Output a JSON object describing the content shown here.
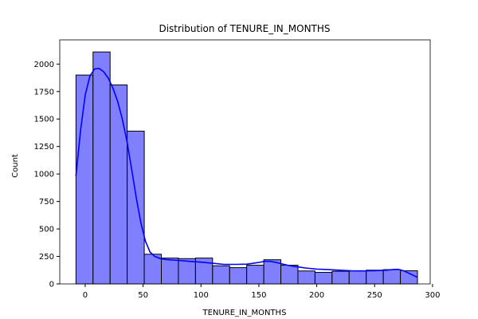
{
  "chart_data": {
    "type": "bar",
    "subtype": "histogram",
    "title": "Distribution of TENURE_IN_MONTHS",
    "xlabel": "TENURE_IN_MONTHS",
    "ylabel": "Count",
    "xlim": [
      -22,
      298
    ],
    "ylim": [
      0,
      2220
    ],
    "xticks": [
      0,
      50,
      100,
      150,
      200,
      250,
      300
    ],
    "yticks": [
      0,
      250,
      500,
      750,
      1000,
      1250,
      1500,
      1750,
      2000
    ],
    "grid": false,
    "bin_edges": [
      -8,
      6.75,
      21.5,
      36.25,
      51,
      65.75,
      80.5,
      95.25,
      110,
      124.75,
      139.5,
      154.25,
      169,
      183.75,
      198.5,
      213.25,
      228,
      242.75,
      257.5,
      272.25,
      287
    ],
    "counts": [
      1900,
      2110,
      1810,
      1390,
      270,
      235,
      230,
      235,
      165,
      148,
      170,
      220,
      170,
      118,
      105,
      115,
      118,
      125,
      130,
      120
    ],
    "kde": {
      "x": [
        -8,
        -4,
        0,
        4,
        8,
        12,
        16,
        20,
        24,
        28,
        32,
        36,
        40,
        44,
        48,
        52,
        56,
        60,
        65,
        70,
        75,
        80,
        90,
        100,
        110,
        120,
        130,
        140,
        150,
        155,
        160,
        165,
        170,
        175,
        180,
        190,
        200,
        210,
        220,
        230,
        240,
        250,
        260,
        265,
        270,
        275,
        280,
        287
      ],
      "y": [
        980,
        1400,
        1720,
        1890,
        1955,
        1960,
        1930,
        1870,
        1780,
        1660,
        1500,
        1300,
        1050,
        790,
        560,
        390,
        290,
        250,
        230,
        222,
        218,
        214,
        205,
        198,
        188,
        178,
        178,
        180,
        195,
        205,
        205,
        195,
        182,
        170,
        160,
        145,
        135,
        130,
        125,
        120,
        118,
        120,
        125,
        130,
        133,
        120,
        95,
        60
      ]
    },
    "colors": {
      "bar_fill": "#8080ff",
      "bar_edge": "#000000",
      "kde_line": "#0000ff",
      "axis": "#000000"
    }
  }
}
